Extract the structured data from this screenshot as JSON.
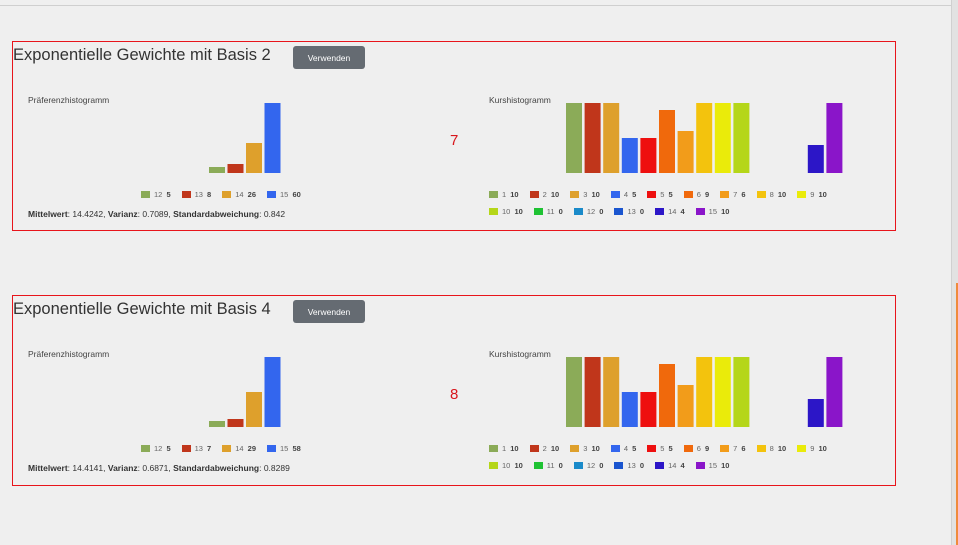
{
  "panels": [
    {
      "title": "Exponentielle Gewichte mit Basis 2",
      "button_label": "Verwenden",
      "number": "7",
      "preference": {
        "label": "Präferenzhistogramm",
        "entries": [
          {
            "key": "12",
            "count": "5",
            "color": "#8bab58"
          },
          {
            "key": "13",
            "count": "8",
            "color": "#c0361b"
          },
          {
            "key": "14",
            "count": "26",
            "color": "#dea02c"
          },
          {
            "key": "15",
            "count": "60",
            "color": "#3366ee"
          }
        ]
      },
      "course": {
        "label": "Kurshistogramm",
        "entries": [
          {
            "key": "1",
            "count": "10",
            "color": "#8bab58"
          },
          {
            "key": "2",
            "count": "10",
            "color": "#c0361b"
          },
          {
            "key": "3",
            "count": "10",
            "color": "#dea02c"
          },
          {
            "key": "4",
            "count": "5",
            "color": "#3366ee"
          },
          {
            "key": "5",
            "count": "5",
            "color": "#ee0f0f"
          },
          {
            "key": "6",
            "count": "9",
            "color": "#f0690c"
          },
          {
            "key": "7",
            "count": "6",
            "color": "#f29c1a"
          },
          {
            "key": "8",
            "count": "10",
            "color": "#f3c30d"
          },
          {
            "key": "9",
            "count": "10",
            "color": "#eaeb0a"
          },
          {
            "key": "10",
            "count": "10",
            "color": "#b5d619"
          },
          {
            "key": "11",
            "count": "0",
            "color": "#1fc233"
          },
          {
            "key": "12",
            "count": "0",
            "color": "#1a8ac9"
          },
          {
            "key": "13",
            "count": "0",
            "color": "#1a55cf"
          },
          {
            "key": "14",
            "count": "4",
            "color": "#2c16c7"
          },
          {
            "key": "15",
            "count": "10",
            "color": "#8a15c9"
          }
        ]
      },
      "stats": {
        "mean_label": "Mittelwert",
        "mean": "14.4242",
        "var_label": "Varianz",
        "var": "0.7089",
        "std_label": "Standardabweichung",
        "std": "0.842"
      }
    },
    {
      "title": "Exponentielle Gewichte mit Basis 4",
      "button_label": "Verwenden",
      "number": "8",
      "preference": {
        "label": "Präferenzhistogramm",
        "entries": [
          {
            "key": "12",
            "count": "5",
            "color": "#8bab58"
          },
          {
            "key": "13",
            "count": "7",
            "color": "#c0361b"
          },
          {
            "key": "14",
            "count": "29",
            "color": "#dea02c"
          },
          {
            "key": "15",
            "count": "58",
            "color": "#3366ee"
          }
        ]
      },
      "course": {
        "label": "Kurshistogramm",
        "entries": [
          {
            "key": "1",
            "count": "10",
            "color": "#8bab58"
          },
          {
            "key": "2",
            "count": "10",
            "color": "#c0361b"
          },
          {
            "key": "3",
            "count": "10",
            "color": "#dea02c"
          },
          {
            "key": "4",
            "count": "5",
            "color": "#3366ee"
          },
          {
            "key": "5",
            "count": "5",
            "color": "#ee0f0f"
          },
          {
            "key": "6",
            "count": "9",
            "color": "#f0690c"
          },
          {
            "key": "7",
            "count": "6",
            "color": "#f29c1a"
          },
          {
            "key": "8",
            "count": "10",
            "color": "#f3c30d"
          },
          {
            "key": "9",
            "count": "10",
            "color": "#eaeb0a"
          },
          {
            "key": "10",
            "count": "10",
            "color": "#b5d619"
          },
          {
            "key": "11",
            "count": "0",
            "color": "#1fc233"
          },
          {
            "key": "12",
            "count": "0",
            "color": "#1a8ac9"
          },
          {
            "key": "13",
            "count": "0",
            "color": "#1a55cf"
          },
          {
            "key": "14",
            "count": "4",
            "color": "#2c16c7"
          },
          {
            "key": "15",
            "count": "10",
            "color": "#8a15c9"
          }
        ]
      },
      "stats": {
        "mean_label": "Mittelwert",
        "mean": "14.4141",
        "var_label": "Varianz",
        "var": "0.6871",
        "std_label": "Standardabweichung",
        "std": "0.8289"
      }
    }
  ]
}
